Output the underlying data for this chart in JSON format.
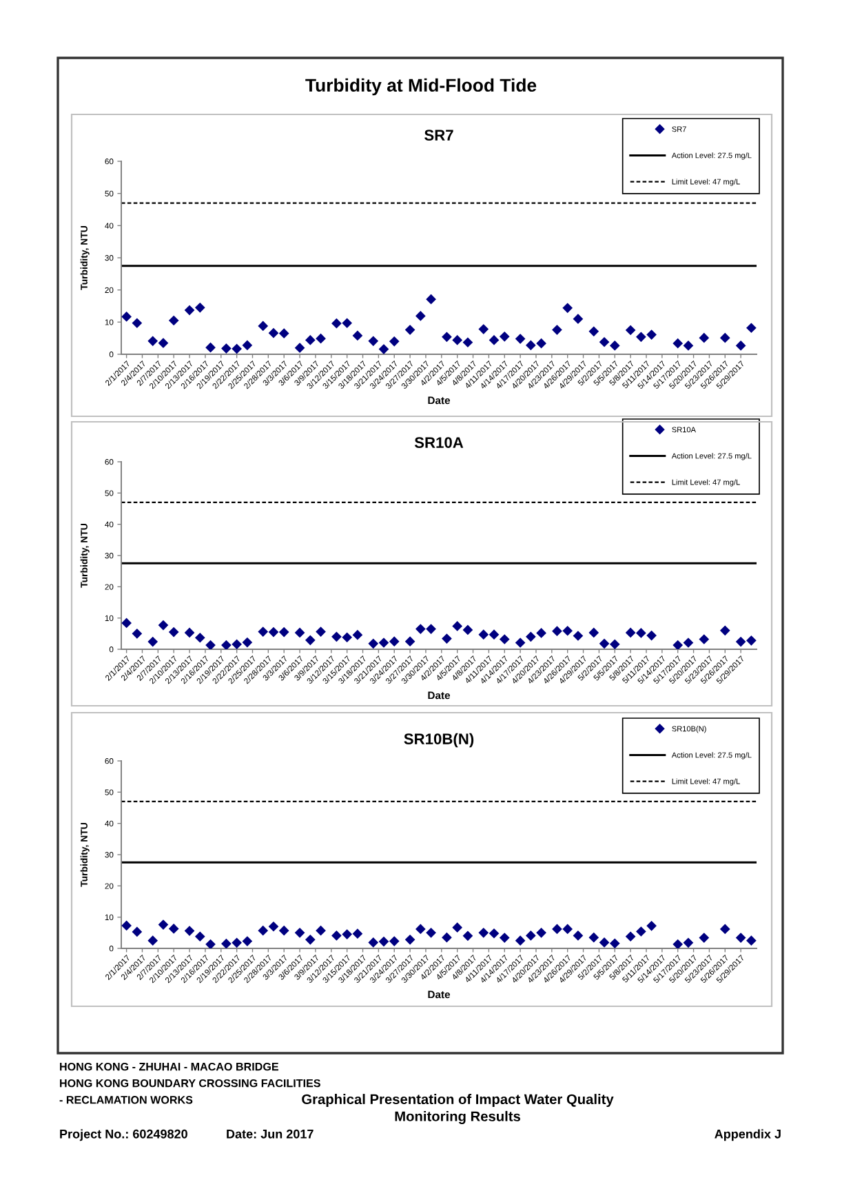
{
  "chart_data": [
    {
      "type": "other",
      "title": "Turbidity at Mid-Flood Tide"
    },
    {
      "type": "scatter",
      "title": "SR7",
      "xlabel": "Date",
      "ylabel": "Turbidity, NTU",
      "marker": "diamond",
      "legend": "top right",
      "x": [
        "2017-02-01",
        "2017-02-03",
        "2017-02-06",
        "2017-02-08",
        "2017-02-10",
        "2017-02-13",
        "2017-02-15",
        "2017-02-17",
        "2017-02-20",
        "2017-02-22",
        "2017-02-24",
        "2017-02-27",
        "2017-03-01",
        "2017-03-03",
        "2017-03-06",
        "2017-03-08",
        "2017-03-10",
        "2017-03-13",
        "2017-03-15",
        "2017-03-17",
        "2017-03-20",
        "2017-03-22",
        "2017-03-24",
        "2017-03-27",
        "2017-03-29",
        "2017-03-31",
        "2017-04-03",
        "2017-04-05",
        "2017-04-07",
        "2017-04-10",
        "2017-04-12",
        "2017-04-14",
        "2017-04-17",
        "2017-04-19",
        "2017-04-21",
        "2017-04-24",
        "2017-04-26",
        "2017-04-28",
        "2017-05-01",
        "2017-05-03",
        "2017-05-05",
        "2017-05-08",
        "2017-05-10",
        "2017-05-12",
        "2017-05-17",
        "2017-05-19",
        "2017-05-22",
        "2017-05-26",
        "2017-05-29",
        "2017-05-31"
      ],
      "series": [
        {
          "name": "SR7",
          "color": "#000080",
          "values": [
            11.7,
            9.7,
            4.1,
            3.5,
            10.5,
            13.7,
            14.5,
            2.1,
            1.8,
            1.7,
            2.8,
            8.8,
            6.6,
            6.5,
            2.0,
            4.4,
            4.9,
            9.6,
            9.7,
            5.8,
            4.1,
            1.6,
            4.0,
            7.6,
            11.9,
            17.1,
            5.4,
            4.4,
            3.7,
            7.8,
            4.4,
            5.5,
            4.8,
            2.8,
            3.4,
            7.6,
            14.4,
            11.0,
            7.1,
            3.8,
            2.7,
            7.5,
            5.4,
            6.1,
            3.4,
            2.7,
            5.1,
            5.1,
            2.7,
            8.2
          ]
        }
      ],
      "ref_lines": [
        {
          "axis": "y",
          "value": 27.5,
          "label": "Action Level: 27.5 mg/L",
          "color": "#000000",
          "line_style": "solid"
        },
        {
          "axis": "y",
          "value": 47,
          "label": "Limit Level: 47 mg/L",
          "color": "#000000",
          "line_style": "dashed"
        }
      ],
      "xlim": [
        "2017-01-31",
        "2017-06-01"
      ],
      "ylim": [
        0,
        60
      ],
      "yticks": [
        0,
        10,
        20,
        30,
        40,
        50,
        60
      ],
      "xticks": [
        {
          "value": "2017-02-01",
          "label": "2/1/2017"
        },
        {
          "value": "2017-02-04",
          "label": "2/4/2017"
        },
        {
          "value": "2017-02-07",
          "label": "2/7/2017"
        },
        {
          "value": "2017-02-10",
          "label": "2/10/2017"
        },
        {
          "value": "2017-02-13",
          "label": "2/13/2017"
        },
        {
          "value": "2017-02-16",
          "label": "2/16/2017"
        },
        {
          "value": "2017-02-19",
          "label": "2/19/2017"
        },
        {
          "value": "2017-02-22",
          "label": "2/22/2017"
        },
        {
          "value": "2017-02-25",
          "label": "2/25/2017"
        },
        {
          "value": "2017-02-28",
          "label": "2/28/2017"
        },
        {
          "value": "2017-03-03",
          "label": "3/3/2017"
        },
        {
          "value": "2017-03-06",
          "label": "3/6/2017"
        },
        {
          "value": "2017-03-09",
          "label": "3/9/2017"
        },
        {
          "value": "2017-03-12",
          "label": "3/12/2017"
        },
        {
          "value": "2017-03-15",
          "label": "3/15/2017"
        },
        {
          "value": "2017-03-18",
          "label": "3/18/2017"
        },
        {
          "value": "2017-03-21",
          "label": "3/21/2017"
        },
        {
          "value": "2017-03-24",
          "label": "3/24/2017"
        },
        {
          "value": "2017-03-27",
          "label": "3/27/2017"
        },
        {
          "value": "2017-03-30",
          "label": "3/30/2017"
        },
        {
          "value": "2017-04-02",
          "label": "4/2/2017"
        },
        {
          "value": "2017-04-05",
          "label": "4/5/2017"
        },
        {
          "value": "2017-04-08",
          "label": "4/8/2017"
        },
        {
          "value": "2017-04-11",
          "label": "4/11/2017"
        },
        {
          "value": "2017-04-14",
          "label": "4/14/2017"
        },
        {
          "value": "2017-04-17",
          "label": "4/17/2017"
        },
        {
          "value": "2017-04-20",
          "label": "4/20/2017"
        },
        {
          "value": "2017-04-23",
          "label": "4/23/2017"
        },
        {
          "value": "2017-04-26",
          "label": "4/26/2017"
        },
        {
          "value": "2017-04-29",
          "label": "4/29/2017"
        },
        {
          "value": "2017-05-02",
          "label": "5/2/2017"
        },
        {
          "value": "2017-05-05",
          "label": "5/5/2017"
        },
        {
          "value": "2017-05-08",
          "label": "5/8/2017"
        },
        {
          "value": "2017-05-11",
          "label": "5/11/2017"
        },
        {
          "value": "2017-05-14",
          "label": "5/14/2017"
        },
        {
          "value": "2017-05-17",
          "label": "5/17/2017"
        },
        {
          "value": "2017-05-20",
          "label": "5/20/2017"
        },
        {
          "value": "2017-05-23",
          "label": "5/23/2017"
        },
        {
          "value": "2017-05-26",
          "label": "5/26/2017"
        },
        {
          "value": "2017-05-29",
          "label": "5/29/2017"
        }
      ]
    },
    {
      "type": "scatter",
      "title": "SR10A",
      "xlabel": "Date",
      "ylabel": "Turbidity, NTU",
      "marker": "diamond",
      "legend": "top right",
      "x": [
        "2017-02-01",
        "2017-02-03",
        "2017-02-06",
        "2017-02-08",
        "2017-02-10",
        "2017-02-13",
        "2017-02-15",
        "2017-02-17",
        "2017-02-20",
        "2017-02-22",
        "2017-02-24",
        "2017-02-27",
        "2017-03-01",
        "2017-03-03",
        "2017-03-06",
        "2017-03-08",
        "2017-03-10",
        "2017-03-13",
        "2017-03-15",
        "2017-03-17",
        "2017-03-20",
        "2017-03-22",
        "2017-03-24",
        "2017-03-27",
        "2017-03-29",
        "2017-03-31",
        "2017-04-03",
        "2017-04-05",
        "2017-04-07",
        "2017-04-10",
        "2017-04-12",
        "2017-04-14",
        "2017-04-17",
        "2017-04-19",
        "2017-04-21",
        "2017-04-24",
        "2017-04-26",
        "2017-04-28",
        "2017-05-01",
        "2017-05-03",
        "2017-05-05",
        "2017-05-08",
        "2017-05-10",
        "2017-05-12",
        "2017-05-17",
        "2017-05-19",
        "2017-05-22",
        "2017-05-26",
        "2017-05-29",
        "2017-05-31"
      ],
      "series": [
        {
          "name": "SR10A",
          "color": "#000080",
          "values": [
            8.4,
            5.0,
            2.4,
            7.7,
            5.5,
            5.3,
            3.7,
            1.3,
            1.3,
            1.6,
            2.2,
            5.6,
            5.5,
            5.5,
            5.3,
            2.9,
            5.6,
            4.0,
            3.8,
            4.6,
            1.8,
            2.1,
            2.5,
            2.5,
            6.5,
            6.5,
            3.4,
            7.4,
            6.2,
            4.7,
            4.7,
            3.2,
            2.1,
            4.0,
            5.2,
            5.8,
            5.9,
            4.3,
            5.3,
            1.8,
            1.6,
            5.3,
            5.2,
            4.4,
            1.3,
            2.1,
            3.2,
            6.0,
            2.4,
            2.8
          ]
        }
      ],
      "ref_lines": [
        {
          "axis": "y",
          "value": 27.5,
          "label": "Action Level: 27.5 mg/L",
          "color": "#000000",
          "line_style": "solid"
        },
        {
          "axis": "y",
          "value": 47,
          "label": "Limit Level: 47 mg/L",
          "color": "#000000",
          "line_style": "dashed"
        }
      ],
      "xlim": [
        "2017-01-31",
        "2017-06-01"
      ],
      "ylim": [
        0,
        60
      ],
      "yticks": [
        0,
        10,
        20,
        30,
        40,
        50,
        60
      ],
      "xticks": [
        {
          "value": "2017-02-01",
          "label": "2/1/2017"
        },
        {
          "value": "2017-02-04",
          "label": "2/4/2017"
        },
        {
          "value": "2017-02-07",
          "label": "2/7/2017"
        },
        {
          "value": "2017-02-10",
          "label": "2/10/2017"
        },
        {
          "value": "2017-02-13",
          "label": "2/13/2017"
        },
        {
          "value": "2017-02-16",
          "label": "2/16/2017"
        },
        {
          "value": "2017-02-19",
          "label": "2/19/2017"
        },
        {
          "value": "2017-02-22",
          "label": "2/22/2017"
        },
        {
          "value": "2017-02-25",
          "label": "2/25/2017"
        },
        {
          "value": "2017-02-28",
          "label": "2/28/2017"
        },
        {
          "value": "2017-03-03",
          "label": "3/3/2017"
        },
        {
          "value": "2017-03-06",
          "label": "3/6/2017"
        },
        {
          "value": "2017-03-09",
          "label": "3/9/2017"
        },
        {
          "value": "2017-03-12",
          "label": "3/12/2017"
        },
        {
          "value": "2017-03-15",
          "label": "3/15/2017"
        },
        {
          "value": "2017-03-18",
          "label": "3/18/2017"
        },
        {
          "value": "2017-03-21",
          "label": "3/21/2017"
        },
        {
          "value": "2017-03-24",
          "label": "3/24/2017"
        },
        {
          "value": "2017-03-27",
          "label": "3/27/2017"
        },
        {
          "value": "2017-03-30",
          "label": "3/30/2017"
        },
        {
          "value": "2017-04-02",
          "label": "4/2/2017"
        },
        {
          "value": "2017-04-05",
          "label": "4/5/2017"
        },
        {
          "value": "2017-04-08",
          "label": "4/8/2017"
        },
        {
          "value": "2017-04-11",
          "label": "4/11/2017"
        },
        {
          "value": "2017-04-14",
          "label": "4/14/2017"
        },
        {
          "value": "2017-04-17",
          "label": "4/17/2017"
        },
        {
          "value": "2017-04-20",
          "label": "4/20/2017"
        },
        {
          "value": "2017-04-23",
          "label": "4/23/2017"
        },
        {
          "value": "2017-04-26",
          "label": "4/26/2017"
        },
        {
          "value": "2017-04-29",
          "label": "4/29/2017"
        },
        {
          "value": "2017-05-02",
          "label": "5/2/2017"
        },
        {
          "value": "2017-05-05",
          "label": "5/5/2017"
        },
        {
          "value": "2017-05-08",
          "label": "5/8/2017"
        },
        {
          "value": "2017-05-11",
          "label": "5/11/2017"
        },
        {
          "value": "2017-05-14",
          "label": "5/14/2017"
        },
        {
          "value": "2017-05-17",
          "label": "5/17/2017"
        },
        {
          "value": "2017-05-20",
          "label": "5/20/2017"
        },
        {
          "value": "2017-05-23",
          "label": "5/23/2017"
        },
        {
          "value": "2017-05-26",
          "label": "5/26/2017"
        },
        {
          "value": "2017-05-29",
          "label": "5/29/2017"
        }
      ]
    },
    {
      "type": "scatter",
      "title": "SR10B(N)",
      "xlabel": "Date",
      "ylabel": "Turbidity, NTU",
      "marker": "diamond",
      "legend": "top right",
      "x": [
        "2017-02-01",
        "2017-02-03",
        "2017-02-06",
        "2017-02-08",
        "2017-02-10",
        "2017-02-13",
        "2017-02-15",
        "2017-02-17",
        "2017-02-20",
        "2017-02-22",
        "2017-02-24",
        "2017-02-27",
        "2017-03-01",
        "2017-03-03",
        "2017-03-06",
        "2017-03-08",
        "2017-03-10",
        "2017-03-13",
        "2017-03-15",
        "2017-03-17",
        "2017-03-20",
        "2017-03-22",
        "2017-03-24",
        "2017-03-27",
        "2017-03-29",
        "2017-03-31",
        "2017-04-03",
        "2017-04-05",
        "2017-04-07",
        "2017-04-10",
        "2017-04-12",
        "2017-04-14",
        "2017-04-17",
        "2017-04-19",
        "2017-04-21",
        "2017-04-24",
        "2017-04-26",
        "2017-04-28",
        "2017-05-01",
        "2017-05-03",
        "2017-05-05",
        "2017-05-08",
        "2017-05-10",
        "2017-05-12",
        "2017-05-17",
        "2017-05-19",
        "2017-05-22",
        "2017-05-26",
        "2017-05-29",
        "2017-05-31"
      ],
      "series": [
        {
          "name": "SR10B(N)",
          "color": "#000080",
          "values": [
            7.3,
            5.3,
            2.5,
            7.6,
            6.3,
            5.6,
            3.8,
            1.3,
            1.5,
            1.8,
            2.3,
            5.7,
            7.0,
            5.7,
            5.0,
            2.8,
            5.7,
            4.1,
            4.5,
            4.7,
            1.9,
            2.2,
            2.3,
            2.8,
            6.2,
            5.0,
            3.5,
            6.7,
            4.0,
            5.0,
            4.8,
            3.4,
            2.5,
            4.1,
            5.0,
            6.2,
            6.2,
            4.1,
            3.5,
            1.9,
            1.6,
            3.8,
            5.4,
            7.2,
            1.3,
            1.8,
            3.4,
            6.2,
            3.4,
            2.5
          ]
        }
      ],
      "ref_lines": [
        {
          "axis": "y",
          "value": 27.5,
          "label": "Action Level: 27.5 mg/L",
          "color": "#000000",
          "line_style": "solid"
        },
        {
          "axis": "y",
          "value": 47,
          "label": "Limit Level: 47 mg/L",
          "color": "#000000",
          "line_style": "dashed"
        }
      ],
      "xlim": [
        "2017-01-31",
        "2017-06-01"
      ],
      "ylim": [
        0,
        60
      ],
      "yticks": [
        0,
        10,
        20,
        30,
        40,
        50,
        60
      ],
      "xticks": [
        {
          "value": "2017-02-01",
          "label": "2/1/2017"
        },
        {
          "value": "2017-02-04",
          "label": "2/4/2017"
        },
        {
          "value": "2017-02-07",
          "label": "2/7/2017"
        },
        {
          "value": "2017-02-10",
          "label": "2/10/2017"
        },
        {
          "value": "2017-02-13",
          "label": "2/13/2017"
        },
        {
          "value": "2017-02-16",
          "label": "2/16/2017"
        },
        {
          "value": "2017-02-19",
          "label": "2/19/2017"
        },
        {
          "value": "2017-02-22",
          "label": "2/22/2017"
        },
        {
          "value": "2017-02-25",
          "label": "2/25/2017"
        },
        {
          "value": "2017-02-28",
          "label": "2/28/2017"
        },
        {
          "value": "2017-03-03",
          "label": "3/3/2017"
        },
        {
          "value": "2017-03-06",
          "label": "3/6/2017"
        },
        {
          "value": "2017-03-09",
          "label": "3/9/2017"
        },
        {
          "value": "2017-03-12",
          "label": "3/12/2017"
        },
        {
          "value": "2017-03-15",
          "label": "3/15/2017"
        },
        {
          "value": "2017-03-18",
          "label": "3/18/2017"
        },
        {
          "value": "2017-03-21",
          "label": "3/21/2017"
        },
        {
          "value": "2017-03-24",
          "label": "3/24/2017"
        },
        {
          "value": "2017-03-27",
          "label": "3/27/2017"
        },
        {
          "value": "2017-03-30",
          "label": "3/30/2017"
        },
        {
          "value": "2017-04-02",
          "label": "4/2/2017"
        },
        {
          "value": "2017-04-05",
          "label": "4/5/2017"
        },
        {
          "value": "2017-04-08",
          "label": "4/8/2017"
        },
        {
          "value": "2017-04-11",
          "label": "4/11/2017"
        },
        {
          "value": "2017-04-14",
          "label": "4/14/2017"
        },
        {
          "value": "2017-04-17",
          "label": "4/17/2017"
        },
        {
          "value": "2017-04-20",
          "label": "4/20/2017"
        },
        {
          "value": "2017-04-23",
          "label": "4/23/2017"
        },
        {
          "value": "2017-04-26",
          "label": "4/26/2017"
        },
        {
          "value": "2017-04-29",
          "label": "4/29/2017"
        },
        {
          "value": "2017-05-02",
          "label": "5/2/2017"
        },
        {
          "value": "2017-05-05",
          "label": "5/5/2017"
        },
        {
          "value": "2017-05-08",
          "label": "5/8/2017"
        },
        {
          "value": "2017-05-11",
          "label": "5/11/2017"
        },
        {
          "value": "2017-05-14",
          "label": "5/14/2017"
        },
        {
          "value": "2017-05-17",
          "label": "5/17/2017"
        },
        {
          "value": "2017-05-20",
          "label": "5/20/2017"
        },
        {
          "value": "2017-05-23",
          "label": "5/23/2017"
        },
        {
          "value": "2017-05-26",
          "label": "5/26/2017"
        },
        {
          "value": "2017-05-29",
          "label": "5/29/2017"
        }
      ]
    },
    {
      "type": "other",
      "annotations": [
        "HONG KONG - ZHUHAI - MACAO BRIDGE",
        "HONG KONG BOUNDARY CROSSING FACILITIES",
        "- RECLAMATION WORKS",
        "Graphical Presentation of Impact Water Quality\nMonitoring Results",
        "Project No.: 60249820",
        "Date: Jun 2017",
        "Appendix J"
      ]
    }
  ]
}
